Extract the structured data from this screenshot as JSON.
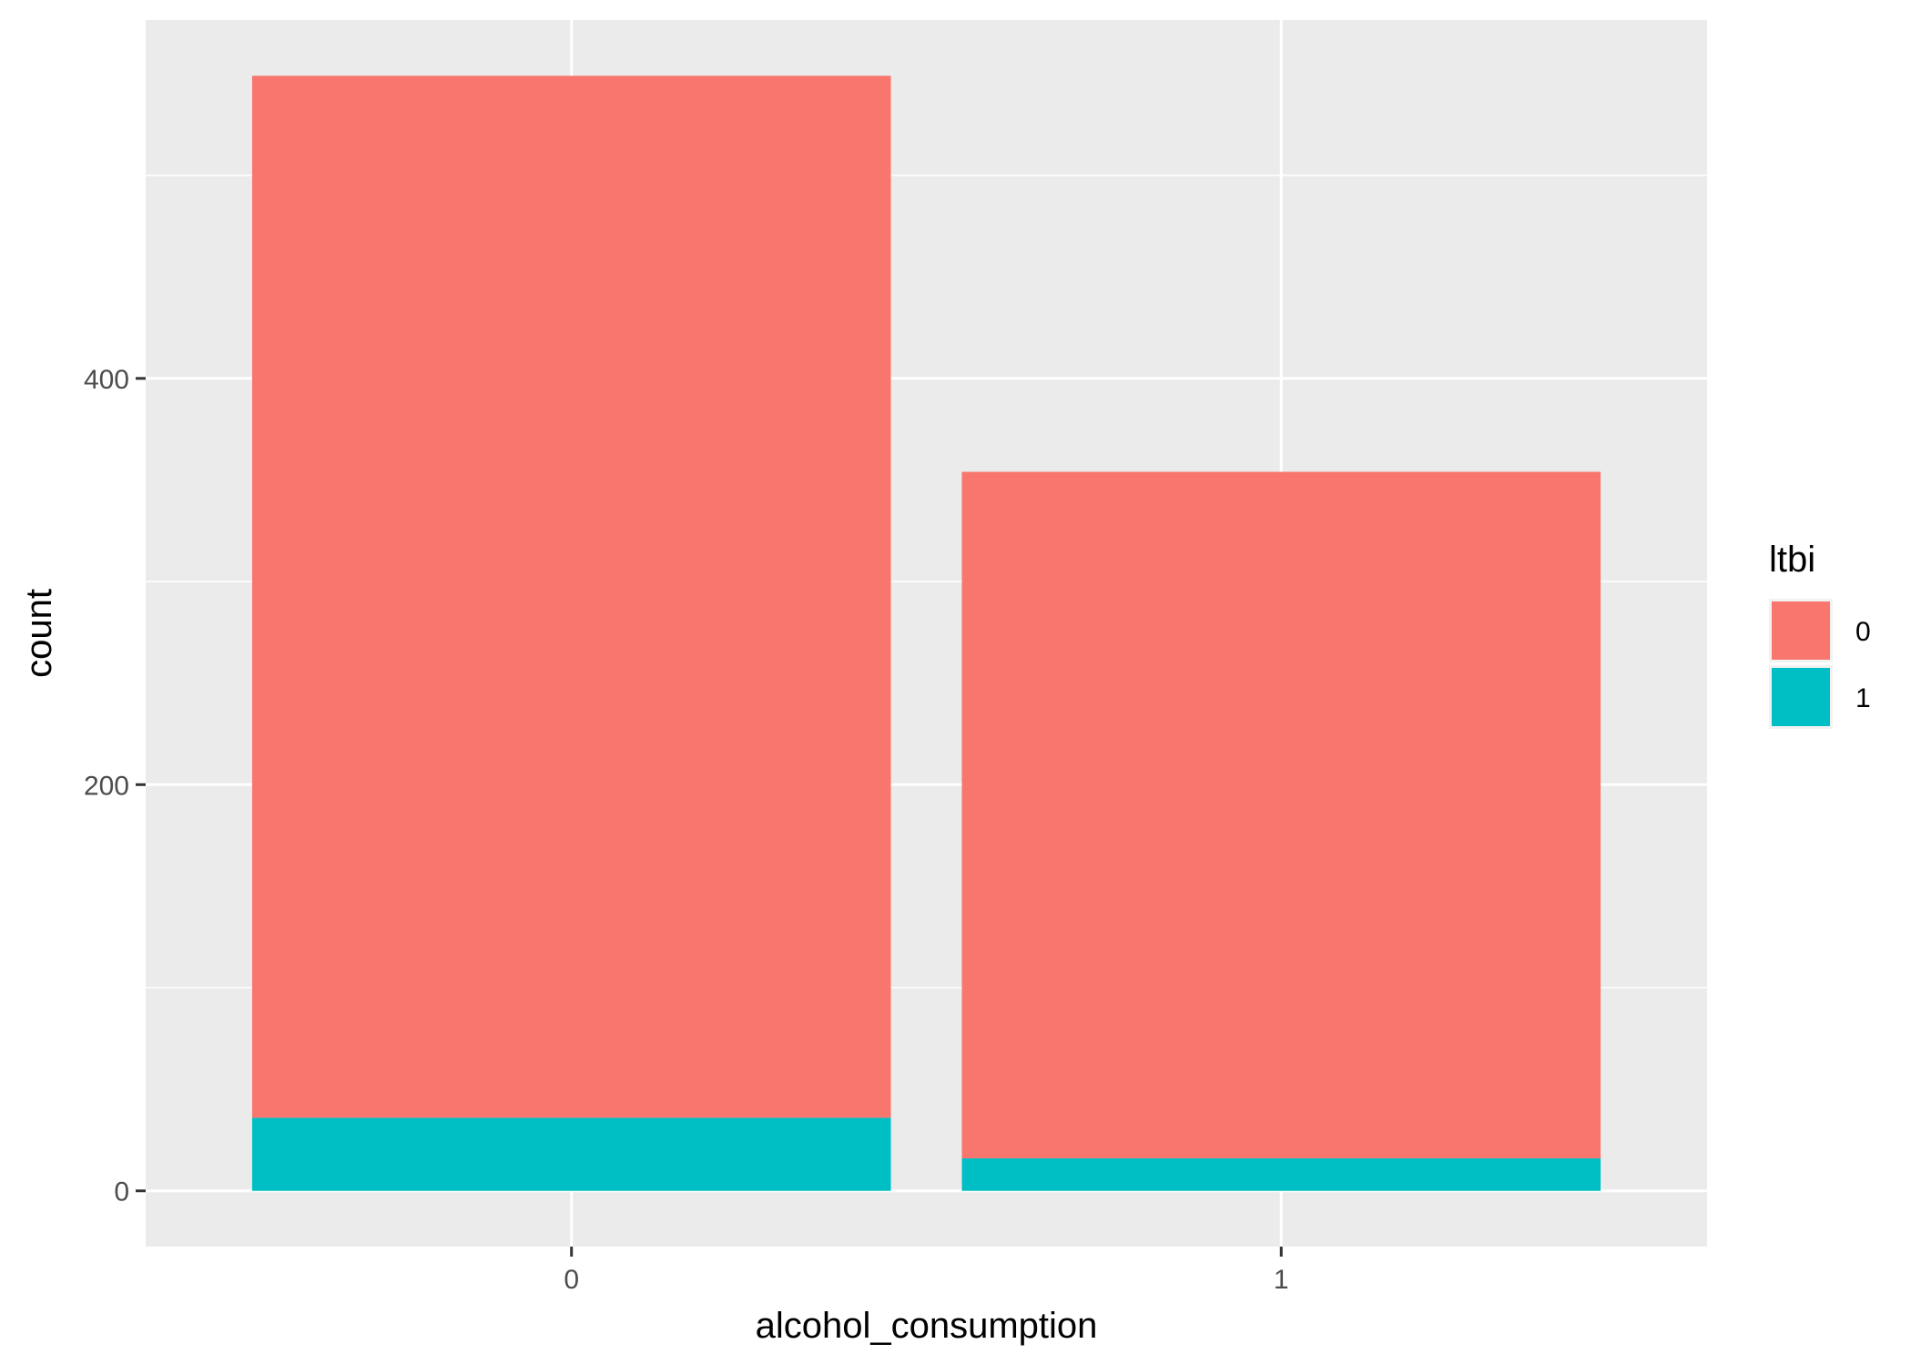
{
  "chart_data": {
    "type": "bar",
    "stacked": true,
    "categories": [
      "0",
      "1"
    ],
    "series": [
      {
        "name": "1",
        "values": [
          36,
          16
        ],
        "color": "#00BFC4"
      },
      {
        "name": "0",
        "values": [
          513,
          338
        ],
        "color": "#F8766D"
      }
    ],
    "xlabel": "alcohol_consumption",
    "ylabel": "count",
    "yticks": [
      0,
      200,
      400
    ],
    "ylim": [
      -27.45,
      576.45
    ],
    "grid": true,
    "legend": {
      "title": "ltbi",
      "position": "right",
      "entries": [
        {
          "label": "0",
          "color": "#F8766D"
        },
        {
          "label": "1",
          "color": "#00BFC4"
        }
      ]
    },
    "panel_background": "#EBEBEB",
    "grid_color": "#FFFFFF"
  }
}
